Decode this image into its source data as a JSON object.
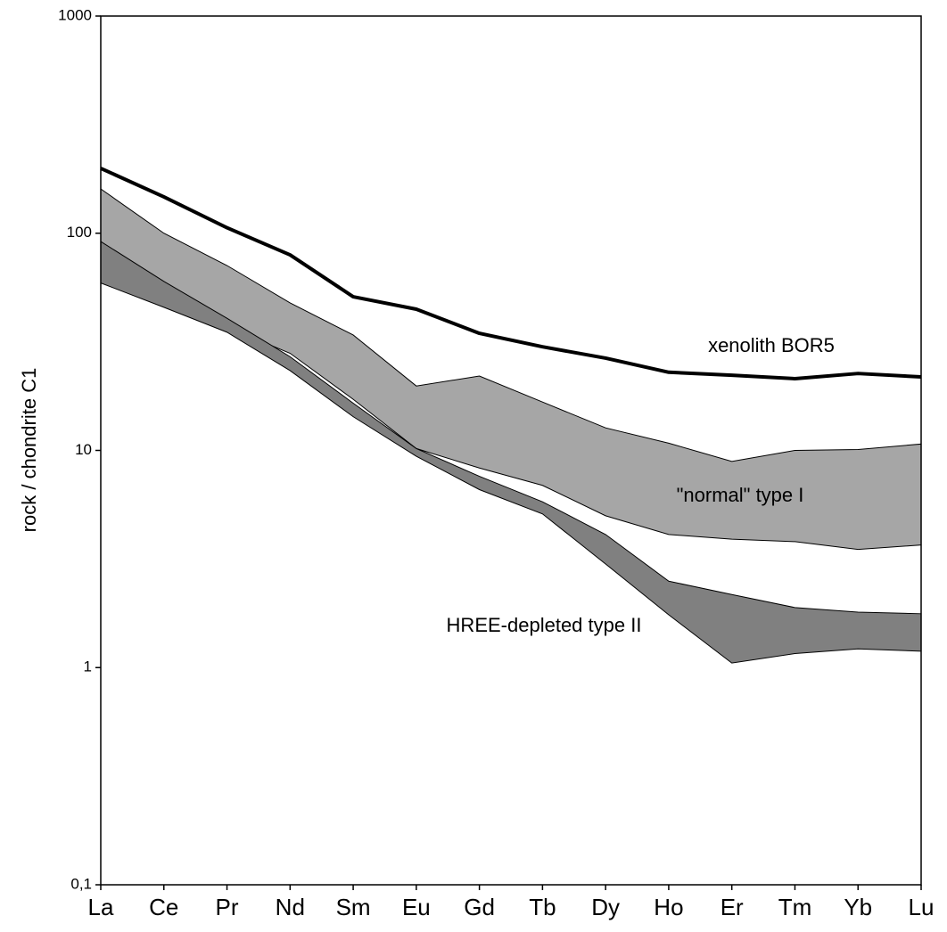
{
  "chart_data": {
    "type": "line",
    "ylabel": "rock / chondrite C1",
    "categories": [
      "La",
      "Ce",
      "Pr",
      "Nd",
      "Sm",
      "Eu",
      "Gd",
      "Tb",
      "Dy",
      "Ho",
      "Er",
      "Tm",
      "Yb",
      "Lu"
    ],
    "log_scale": true,
    "ylim": [
      0.1,
      1000
    ],
    "yticks": [
      {
        "value": 0.1,
        "label": "0,1"
      },
      1,
      10,
      100,
      1000
    ],
    "grid": false,
    "series": [
      {
        "name": "xenolith BOR5",
        "color": "#000000",
        "values": [
          199,
          147,
          106,
          79.5,
          51,
          44.7,
          34.6,
          30,
          26.6,
          22.9,
          22.2,
          21.4,
          22.6,
          21.8
        ]
      },
      {
        "name": "\"normal\" type I",
        "color": "#a6a6a6",
        "upper": [
          160,
          100,
          71,
          47.8,
          34,
          19.8,
          22,
          16.7,
          12.7,
          10.8,
          8.9,
          10,
          10.1,
          10.7
        ],
        "lower": [
          73,
          52,
          37,
          28,
          17.2,
          10.2,
          8.3,
          6.9,
          5.0,
          4.1,
          3.9,
          3.8,
          3.5,
          3.67
        ]
      },
      {
        "name": "HREE-depleted type II",
        "color": "#808080",
        "upper": [
          91.6,
          60,
          40.6,
          27,
          16.5,
          10.2,
          7.6,
          5.8,
          4.1,
          2.5,
          2.17,
          1.89,
          1.8,
          1.77
        ],
        "lower": [
          59,
          45.6,
          35,
          23.3,
          14.3,
          9.4,
          6.6,
          5.1,
          3.0,
          1.75,
          1.05,
          1.16,
          1.22,
          1.19
        ]
      }
    ]
  }
}
